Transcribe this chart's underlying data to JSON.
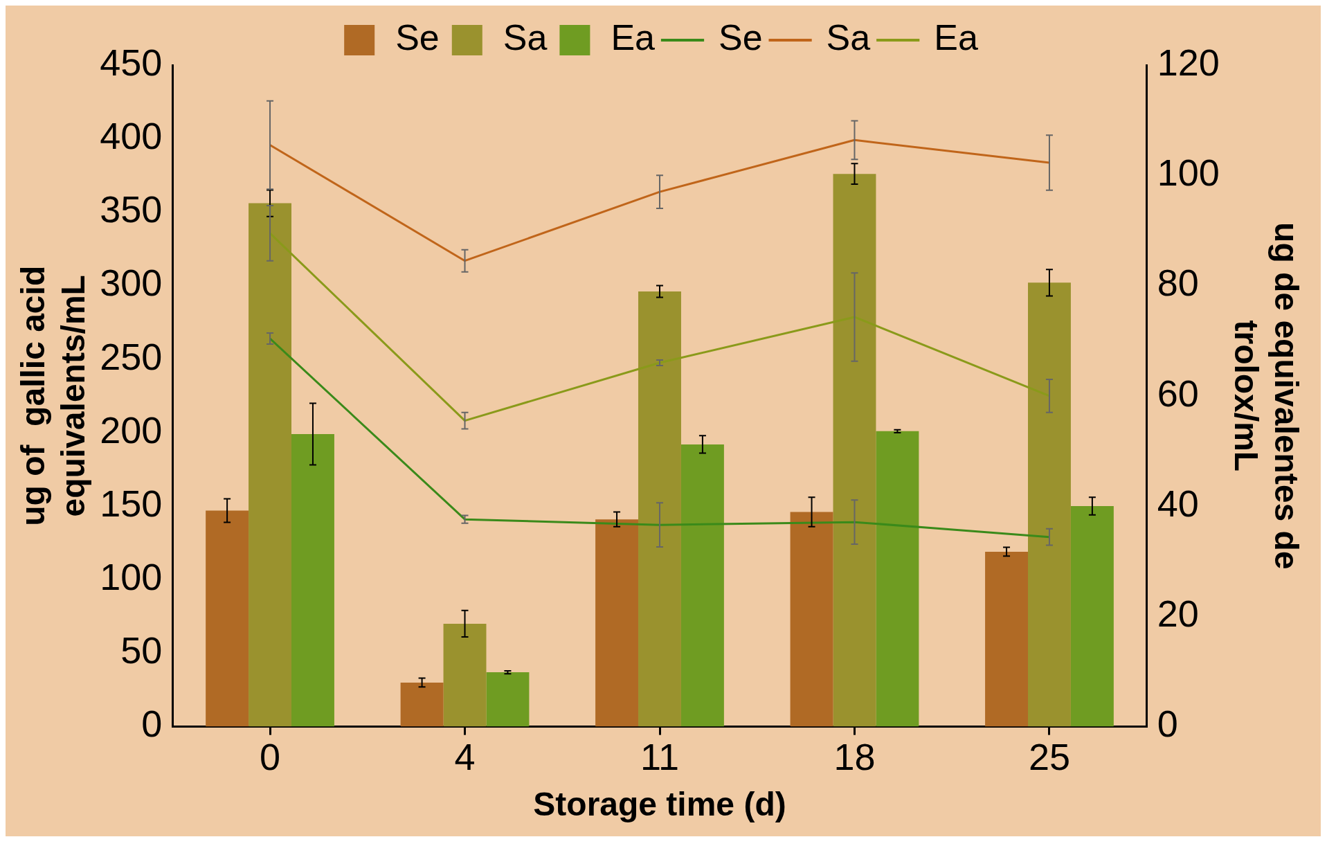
{
  "chart_data": {
    "type": "bar",
    "xlabel": "Storage time (d)",
    "ylabel": "ug of  gallic acid\nequivalents/mL",
    "y2label": "ug de equivalentes de\ntrolox/mL",
    "categories": [
      "0",
      "4",
      "11",
      "18",
      "25"
    ],
    "series": [
      {
        "name": "Se",
        "color": "#b06a25",
        "values": [
          147,
          30,
          141,
          146,
          119
        ],
        "errors": [
          8,
          3,
          5,
          10,
          3
        ]
      },
      {
        "name": "Sa",
        "color": "#9a922e",
        "values": [
          356,
          70,
          296,
          376,
          302
        ],
        "errors": [
          9,
          9,
          4,
          7,
          9
        ]
      },
      {
        "name": "Ea",
        "color": "#6f9c22",
        "values": [
          199,
          37,
          192,
          201,
          150
        ],
        "errors": [
          21,
          1,
          6,
          1,
          6
        ]
      },
      {
        "name": "Se",
        "type": "line",
        "axis": "y2",
        "color": "#3a8a1a",
        "values": [
          70.4,
          37.6,
          36.6,
          37.1,
          34.4
        ],
        "errors": [
          1,
          0.7,
          4,
          4,
          1.5
        ]
      },
      {
        "name": "Sa",
        "type": "line",
        "axis": "y2",
        "color": "#c0651a",
        "values": [
          105.5,
          84.5,
          97,
          106.4,
          102.3
        ],
        "errors": [
          8,
          2,
          3,
          3.5,
          5
        ]
      },
      {
        "name": "Ea",
        "type": "line",
        "axis": "y2",
        "color": "#8a9a1a",
        "values": [
          89.5,
          55.5,
          66,
          74.3,
          60
        ],
        "errors": [
          5,
          1.5,
          0.5,
          8,
          3
        ]
      }
    ],
    "ylim": [
      0,
      450
    ],
    "yticks": [
      0,
      50,
      100,
      150,
      200,
      250,
      300,
      350,
      400,
      450
    ],
    "y2lim": [
      0,
      120
    ],
    "y2ticks": [
      0,
      20,
      40,
      60,
      80,
      100,
      120
    ],
    "grid": false,
    "legend": "top",
    "marker": "none"
  }
}
